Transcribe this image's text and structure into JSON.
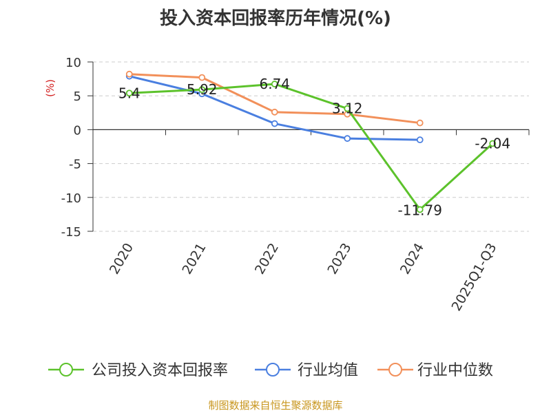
{
  "chart_data": {
    "type": "line",
    "title": "投入资本回报率历年情况(%)",
    "ylabel": "(%)",
    "categories": [
      "2020",
      "2021",
      "2022",
      "2023",
      "2024",
      "2025Q1-Q3"
    ],
    "ylim": [
      -15,
      10
    ],
    "yticks": [
      -15,
      -10,
      -5,
      0,
      5,
      10
    ],
    "grid": true,
    "legend_position": "bottom",
    "series": [
      {
        "name": "公司投入资本回报率",
        "color": "#5cc22b",
        "values": [
          5.4,
          5.92,
          6.74,
          3.12,
          -11.79,
          -2.04
        ],
        "labels": [
          "5.4",
          "5.92",
          "6.74",
          "3.12",
          "-11.79",
          "-2.04"
        ]
      },
      {
        "name": "行业均值",
        "color": "#4a7fe0",
        "values": [
          7.9,
          5.3,
          0.9,
          -1.3,
          -1.5,
          null
        ]
      },
      {
        "name": "行业中位数",
        "color": "#f2905a",
        "values": [
          8.2,
          7.7,
          2.6,
          2.3,
          1.0,
          null
        ]
      }
    ]
  },
  "footer": {
    "source": "制图数据来自恒生聚源数据库"
  }
}
